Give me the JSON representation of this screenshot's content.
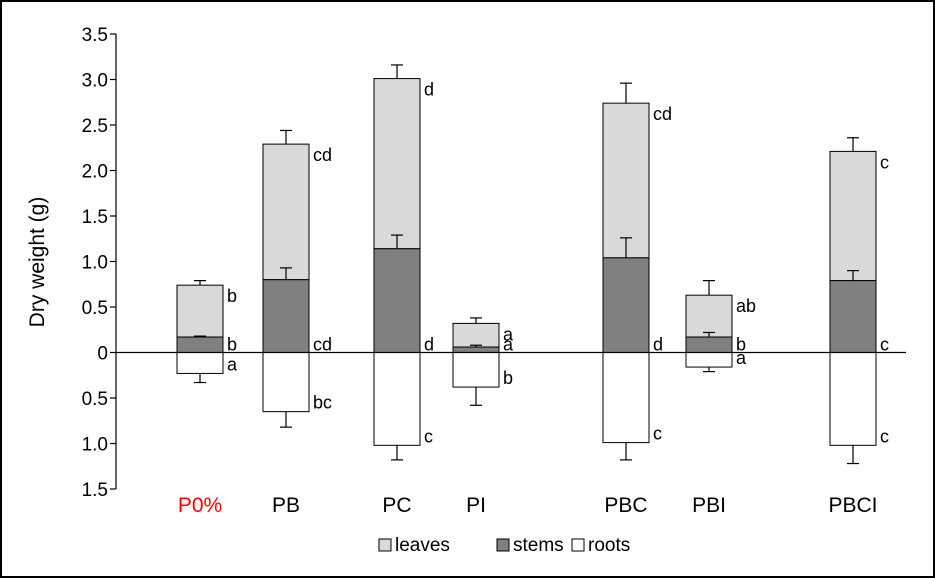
{
  "chart_data": {
    "type": "bar",
    "stacked": true,
    "ylabel": "Dry weight (g)",
    "xlabel": "",
    "ylim": [
      -1.5,
      3.5
    ],
    "yticks": [
      {
        "value": 3.5,
        "label": "3.5"
      },
      {
        "value": 3.0,
        "label": "3.0"
      },
      {
        "value": 2.5,
        "label": "2.5"
      },
      {
        "value": 2.0,
        "label": "2.0"
      },
      {
        "value": 1.5,
        "label": "1.5"
      },
      {
        "value": 1.0,
        "label": "1.0"
      },
      {
        "value": 0.5,
        "label": "0.5"
      },
      {
        "value": 0.0,
        "label": "0"
      },
      {
        "value": -0.5,
        "label": "0.5"
      },
      {
        "value": -1.0,
        "label": "1.0"
      },
      {
        "value": -1.5,
        "label": "1.5"
      }
    ],
    "categories": [
      "P0%",
      "PB",
      "PC",
      "PI",
      "PBC",
      "PBI",
      "PBCI"
    ],
    "category_colors": [
      "#ff0000",
      "#000000",
      "#000000",
      "#000000",
      "#000000",
      "#000000",
      "#000000"
    ],
    "series": [
      {
        "name": "leaves",
        "color": "#d9d9d9",
        "top": [
          0.74,
          2.29,
          3.01,
          0.32,
          2.74,
          0.63,
          2.21
        ],
        "error": [
          0.05,
          0.15,
          0.15,
          0.06,
          0.22,
          0.16,
          0.15
        ],
        "letters": [
          "b",
          "cd",
          "d",
          "a",
          "cd",
          "ab",
          "c"
        ]
      },
      {
        "name": "stems",
        "color": "#808080",
        "top": [
          0.17,
          0.8,
          1.14,
          0.06,
          1.04,
          0.17,
          0.79
        ],
        "error": [
          0.01,
          0.13,
          0.15,
          0.02,
          0.22,
          0.05,
          0.11
        ],
        "letters": [
          "b",
          "cd",
          "d",
          "a",
          "d",
          "b",
          "c"
        ]
      },
      {
        "name": "roots",
        "color": "#ffffff",
        "bottom": [
          -0.23,
          -0.65,
          -1.02,
          -0.38,
          -0.99,
          -0.16,
          -1.02
        ],
        "error": [
          0.1,
          0.17,
          0.16,
          0.2,
          0.19,
          0.05,
          0.2
        ],
        "letters": [
          "a",
          "bc",
          "c",
          "b",
          "c",
          "a",
          "c"
        ]
      }
    ],
    "legend": {
      "placement": "bottom-center",
      "entries": [
        "leaves",
        "stems",
        "roots"
      ]
    },
    "grid": false
  }
}
